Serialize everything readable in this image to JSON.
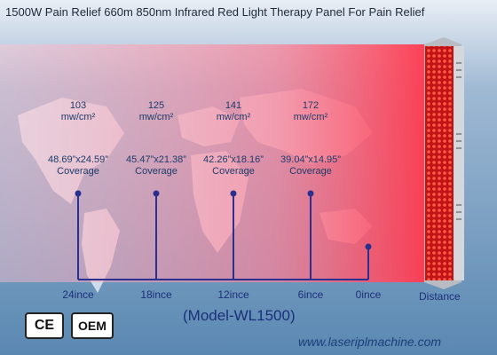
{
  "title": "1500W Pain Relief 660m 850nm  Infrared Red Light Therapy Panel For Pain Relief",
  "measurements": [
    {
      "irradiance": "103",
      "unit": "mw/cm²",
      "coverage": "48.69”x24.59”",
      "coverage_label": "Coverage",
      "distance": "24ince"
    },
    {
      "irradiance": "125",
      "unit": "mw/cm²",
      "coverage": "45.47”x21.38”",
      "coverage_label": "Coverage",
      "distance": "18ince"
    },
    {
      "irradiance": "141",
      "unit": "mw/cm²",
      "coverage": "42.26”x18.16”",
      "coverage_label": "Coverage",
      "distance": "12ince"
    },
    {
      "irradiance": "172",
      "unit": "mw/cm²",
      "coverage": "39.04”x14.95”",
      "coverage_label": "Coverage",
      "distance": "6ince"
    }
  ],
  "origin_label": "0ince",
  "axis_label": "Distance",
  "model": "(Model-WL1500)",
  "badges": {
    "ce": "CE",
    "oem": "OEM"
  },
  "website": "www.laseriplmachine.com",
  "colors": {
    "background": "#5f8fb8",
    "light_beam": "#ff6f86",
    "axis": "#2b2f8f",
    "led": "#ff2a2a"
  }
}
